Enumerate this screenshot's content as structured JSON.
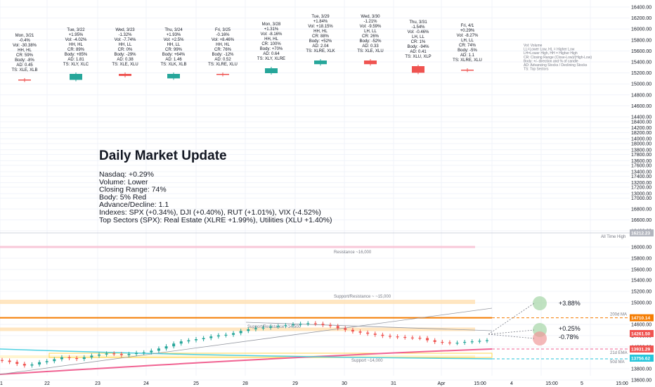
{
  "chart_data": {
    "type": "candlestick",
    "y_axis": {
      "top_panel": {
        "ticks": [
          16400,
          16200,
          16000,
          15800,
          15600,
          15400,
          15200,
          15000,
          14800,
          14600,
          14400,
          14200,
          14000,
          13800,
          13600,
          13400,
          13200,
          13000
        ]
      },
      "bottom_panel": {
        "ticks": [
          18400,
          18200,
          18000,
          17800,
          17600,
          17400,
          17200,
          17000,
          16800,
          16600,
          16400,
          16000,
          15800,
          15600,
          15400,
          15200,
          15000,
          14600,
          14400,
          14200,
          13800,
          13600,
          13400,
          13200
        ]
      }
    },
    "x_axis": {
      "ticks": [
        "1",
        "22",
        "23",
        "24",
        "25",
        "28",
        "29",
        "30",
        "31",
        "Apr",
        "15:00",
        "4",
        "15:00",
        "5",
        "15:00"
      ]
    },
    "day_summaries": [
      {
        "date": "Mon, 3/21",
        "lines": [
          "-0.4%",
          "Vol: -30.38%",
          "HH, HL",
          "CR: 59%",
          "Body: -8%",
          "AD: 0.45",
          "TS: XLE, XLB"
        ],
        "body": "red",
        "body_size": 0.08
      },
      {
        "date": "Tue, 3/22",
        "lines": [
          "+1.95%",
          "Vol: -4.02%",
          "HH, HL",
          "CR: 89%",
          "Body: +85%",
          "AD: 1.81",
          "TS: XLY, XLC"
        ],
        "body": "green",
        "body_size": 0.85
      },
      {
        "date": "Wed, 3/23",
        "lines": [
          "-1.32%",
          "Vol: -7.74%",
          "HH, LL",
          "CR: 0%",
          "Body: -29%",
          "AD: 0.38",
          "TS: XLE, XLU"
        ],
        "body": "red",
        "body_size": 0.29
      },
      {
        "date": "Thu, 3/24",
        "lines": [
          "+1.93%",
          "Vol: +2.5%",
          "HH, LL",
          "CR: 99%",
          "Body: +64%",
          "AD: 1.46",
          "TS: XLK, XLB"
        ],
        "body": "green",
        "body_size": 0.64
      },
      {
        "date": "Fri, 3/25",
        "lines": [
          "-0.16%",
          "Vol: +8.46%",
          "HH, HL",
          "CR: 76%",
          "Body: -12%",
          "AD: 0.52",
          "TS: XLRE, XLU"
        ],
        "body": "red",
        "body_size": 0.12
      },
      {
        "date": "Mon, 3/28",
        "lines": [
          "+1.31%",
          "Vol: -8.16%",
          "HH, HL",
          "CR: 100%",
          "Body: +70%",
          "AD: 0.64",
          "TS: XLY, XLRE"
        ],
        "body": "green",
        "body_size": 0.7
      },
      {
        "date": "Tue, 3/29",
        "lines": [
          "+1.84%",
          "Vol: +18.15%",
          "HH, HL",
          "CR: 88%",
          "Body: +52%",
          "AD: 2.04",
          "TS: XLRE, XLK"
        ],
        "body": "green",
        "body_size": 0.52
      },
      {
        "date": "Wed, 3/30",
        "lines": [
          "-1.21%",
          "Vol: -9.59%",
          "LH, LL",
          "CR: 26%",
          "Body: -52%",
          "AD: 0.33",
          "TS: XLE, XLU"
        ],
        "body": "red",
        "body_size": 0.52
      },
      {
        "date": "Thu, 3/31",
        "lines": [
          "-1.54%",
          "Vol: -0.46%",
          "LH, LL",
          "CR: 1%",
          "Body: -94%",
          "AD: 0.41",
          "TS: XLU, XLP"
        ],
        "body": "red",
        "body_size": 0.94
      },
      {
        "date": "Fri, 4/1",
        "lines": [
          "+0.29%",
          "Vol: -8.27%",
          "LH, LL",
          "CR: 74%",
          "Body: -5%",
          "AD: 1.1",
          "TS: XLRE, XLU"
        ],
        "body": "red",
        "body_size": 0.05
      }
    ],
    "legend_text": [
      "Vol: Volume",
      "LL=Lower Low, HL = Higher Low",
      "LH=Lower High, HH = Higher High",
      "CR: Closing Range (Close-Low)/(High-Low)",
      "Body: +/- direction and % of candle",
      "AD: Advancing Stocks / Declining Stocks",
      "TS: Top Sectors"
    ],
    "update": {
      "title": "Daily Market Update",
      "lines": [
        "Nasdaq: +0.29%",
        "Volume: Lower",
        "Closing Range: 74%",
        "Body: 5% Red",
        "Advance/Decline: 1.1",
        "Indexes: SPX (+0.34%), DJI (+0.40%), RUT (+1.01%), VIX (-4.52%)",
        "Top Sectors (SPX): Real Estate (XLRE +1.99%), Utilities (XLU +1.40%)"
      ]
    },
    "price_series": [
      13930,
      13905,
      13870,
      13840,
      13860,
      13900,
      13920,
      13955,
      13990,
      13975,
      13960,
      13990,
      14020,
      14040,
      14060,
      14050,
      14030,
      14050,
      14070,
      14080,
      14110,
      14150,
      14190,
      14240,
      14280,
      14300,
      14320,
      14340,
      14370,
      14390,
      14400,
      14430,
      14470,
      14500,
      14520,
      14530,
      14550,
      14560,
      14575,
      14590,
      14600,
      14610,
      14600,
      14580,
      14560,
      14520,
      14490,
      14460,
      14440,
      14420,
      14400,
      14380,
      14370,
      14360,
      14350,
      14345,
      14340,
      14300,
      14270,
      14260,
      14250,
      14255,
      14270,
      14280,
      14290,
      14300
    ],
    "levels": [
      {
        "label": "Resistance ~16,000",
        "value": 16000
      },
      {
        "label": "Support/Resistance ~ ~15,000",
        "value": 15000
      },
      {
        "label": "Support/Resistance ~14,500",
        "value": 14500
      },
      {
        "label": "Support ~14,000",
        "value": 14000
      }
    ],
    "moving_averages": [
      {
        "name": "200d MA",
        "value": 14710.14,
        "color": "#f57c00"
      },
      {
        "name": "21d EMA",
        "value": 13931.29,
        "color": "#f06292"
      },
      {
        "name": "50d MA",
        "value": 13756.62,
        "color": "#26c6da"
      }
    ],
    "price_tags": [
      {
        "value": "16212.23",
        "color": "#b2b5be"
      },
      {
        "value": "14710.14",
        "color": "#f57c00"
      },
      {
        "value": "14261.50",
        "color": "#ef5350"
      },
      {
        "value": "13931.29",
        "color": "#ef5350"
      },
      {
        "value": "13756.62",
        "color": "#26c6da"
      }
    ],
    "all_time_high_label": "All Time High",
    "projections": [
      {
        "label": "+3.88%",
        "color": "#a5d6a7"
      },
      {
        "label": "+0.25%",
        "color": "#a5d6a7"
      },
      {
        "label": "-0.78%",
        "color": "#ef9a9a"
      }
    ]
  }
}
